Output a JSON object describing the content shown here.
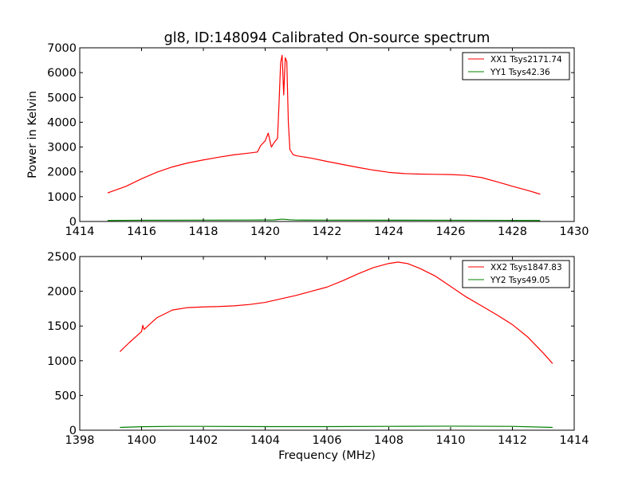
{
  "chart_data": [
    {
      "type": "line",
      "title": "gl8, ID:148094 Calibrated On-source spectrum",
      "xlabel": "",
      "ylabel": "Power in Kelvin",
      "xlim": [
        1414,
        1430
      ],
      "ylim": [
        0,
        7000
      ],
      "xticks": [
        "1414",
        "1416",
        "1418",
        "1420",
        "1422",
        "1424",
        "1426",
        "1428",
        "1430"
      ],
      "yticks": [
        "0",
        "1000",
        "2000",
        "3000",
        "4000",
        "5000",
        "6000",
        "7000"
      ],
      "legend_position": "top-right",
      "series": [
        {
          "name": "XX1 Tsys2171.74",
          "color": "#ff0000",
          "x": [
            1414.9,
            1415.5,
            1416.0,
            1416.5,
            1417.0,
            1417.5,
            1418.0,
            1418.5,
            1419.0,
            1419.5,
            1419.75,
            1419.85,
            1420.0,
            1420.1,
            1420.2,
            1420.3,
            1420.4,
            1420.45,
            1420.5,
            1420.55,
            1420.6,
            1420.65,
            1420.7,
            1420.75,
            1420.8,
            1420.9,
            1421.0,
            1421.5,
            1422.0,
            1422.5,
            1423.0,
            1423.5,
            1424.0,
            1424.5,
            1425.0,
            1425.5,
            1426.0,
            1426.5,
            1427.0,
            1427.5,
            1428.0,
            1428.5,
            1428.9
          ],
          "values": [
            1150,
            1420,
            1720,
            1990,
            2200,
            2360,
            2480,
            2590,
            2690,
            2760,
            2800,
            3050,
            3250,
            3560,
            3000,
            3200,
            3350,
            4800,
            6400,
            6700,
            5100,
            6600,
            6450,
            4000,
            2900,
            2700,
            2650,
            2550,
            2420,
            2300,
            2180,
            2070,
            1980,
            1930,
            1910,
            1900,
            1890,
            1860,
            1770,
            1600,
            1420,
            1250,
            1100
          ]
        },
        {
          "name": "YY1 Tsys42.36",
          "color": "#008000",
          "x": [
            1414.9,
            1416.0,
            1418.0,
            1419.5,
            1420.3,
            1420.55,
            1420.8,
            1421.0,
            1422.0,
            1424.0,
            1426.0,
            1428.0,
            1428.9
          ],
          "values": [
            40,
            50,
            55,
            58,
            65,
            95,
            70,
            58,
            55,
            53,
            50,
            45,
            40
          ]
        }
      ]
    },
    {
      "type": "line",
      "title": "",
      "xlabel": "Frequency (MHz)",
      "ylabel": "",
      "xlim": [
        1398,
        1414
      ],
      "ylim": [
        0,
        2500
      ],
      "xticks": [
        "1398",
        "1400",
        "1402",
        "1404",
        "1406",
        "1408",
        "1410",
        "1412",
        "1414"
      ],
      "yticks": [
        "0",
        "500",
        "1000",
        "1500",
        "2000",
        "2500"
      ],
      "legend_position": "top-right",
      "series": [
        {
          "name": "XX2 Tsys1847.83",
          "color": "#ff0000",
          "x": [
            1399.3,
            1399.6,
            1400.0,
            1400.04,
            1400.08,
            1400.5,
            1401.0,
            1401.5,
            1402.0,
            1402.5,
            1403.0,
            1403.5,
            1404.0,
            1404.5,
            1405.0,
            1405.5,
            1406.0,
            1406.5,
            1407.0,
            1407.5,
            1408.0,
            1408.3,
            1408.6,
            1409.0,
            1409.5,
            1410.0,
            1410.5,
            1411.0,
            1411.5,
            1412.0,
            1412.5,
            1413.0,
            1413.3
          ],
          "values": [
            1130,
            1260,
            1420,
            1510,
            1450,
            1620,
            1730,
            1765,
            1775,
            1780,
            1790,
            1810,
            1840,
            1890,
            1940,
            2000,
            2060,
            2150,
            2250,
            2340,
            2400,
            2420,
            2400,
            2330,
            2220,
            2070,
            1920,
            1790,
            1660,
            1520,
            1340,
            1110,
            960
          ]
        },
        {
          "name": "YY2 Tsys49.05",
          "color": "#008000",
          "x": [
            1399.3,
            1400.0,
            1401.0,
            1402.0,
            1404.0,
            1406.0,
            1408.0,
            1410.0,
            1412.0,
            1413.3
          ],
          "values": [
            40,
            50,
            55,
            55,
            52,
            52,
            55,
            58,
            55,
            40
          ]
        }
      ]
    }
  ]
}
